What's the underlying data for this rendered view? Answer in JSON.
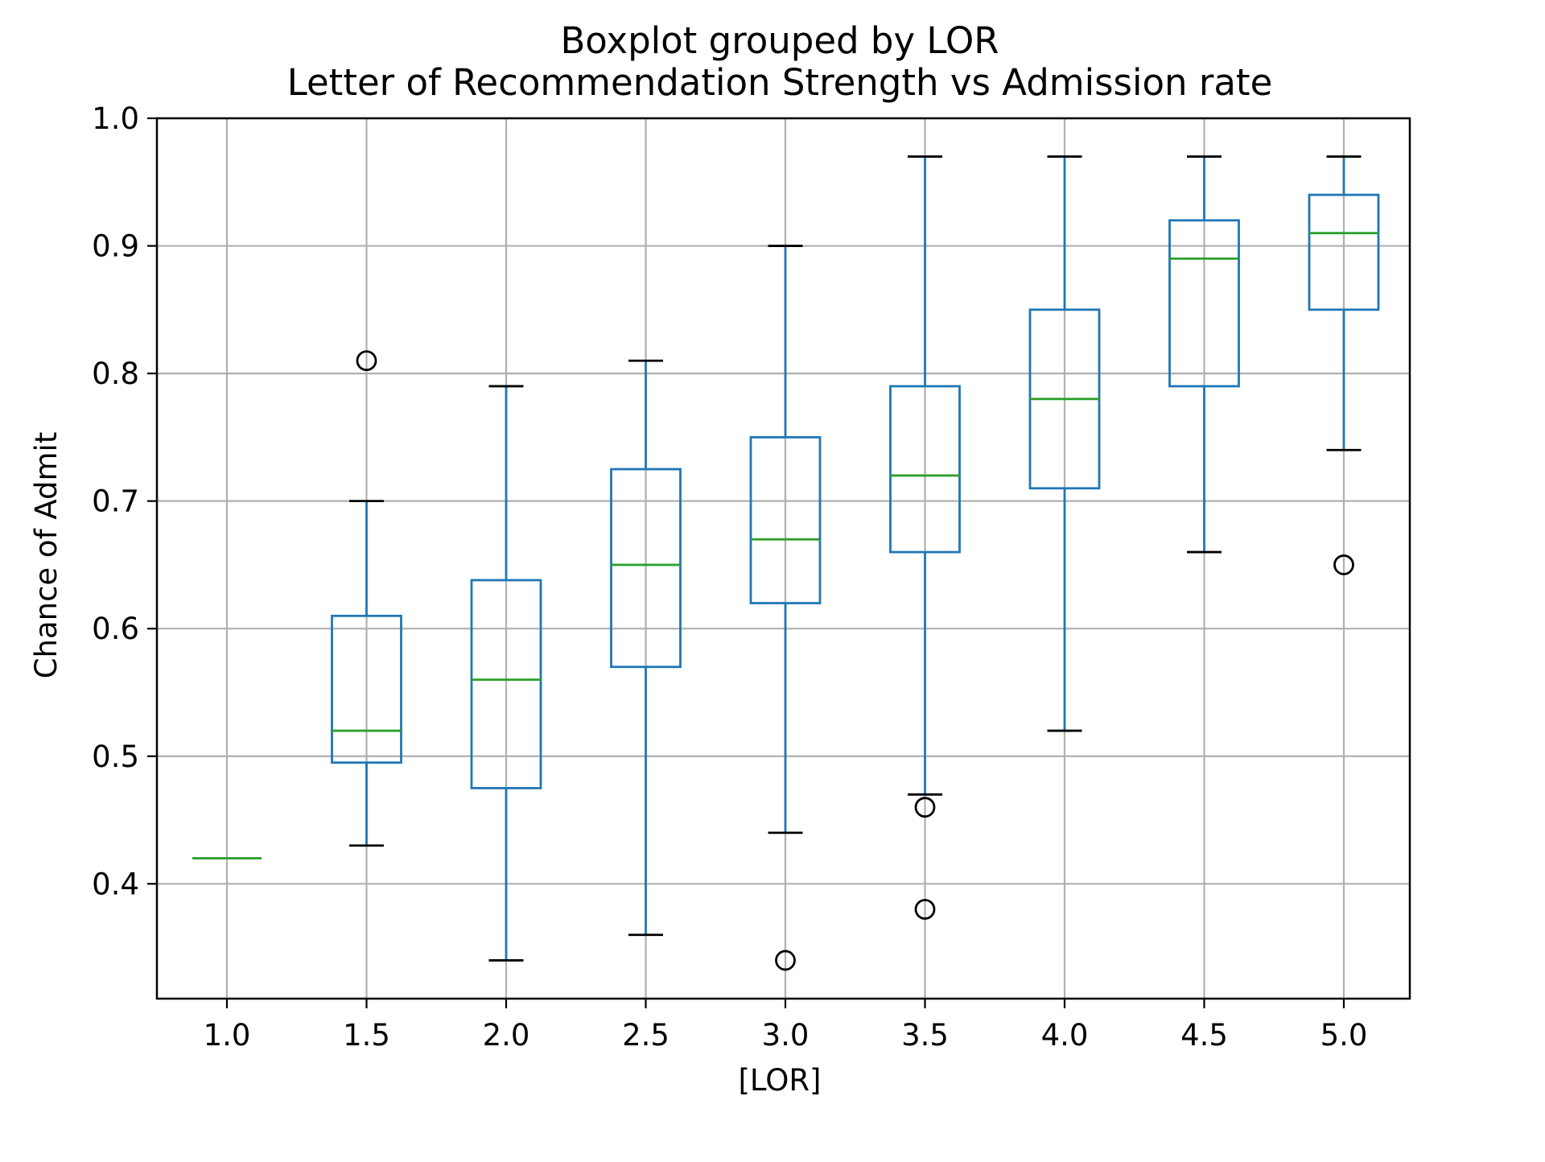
{
  "chart_data": {
    "type": "boxplot",
    "title": "Boxplot grouped by LOR",
    "subtitle": "Letter of Recommendation Strength vs Admission rate",
    "xlabel": "[LOR]",
    "ylabel": "Chance of Admit",
    "categories": [
      "1.0",
      "1.5",
      "2.0",
      "2.5",
      "3.0",
      "3.5",
      "4.0",
      "4.5",
      "5.0"
    ],
    "x_tick_labels": [
      "1.0",
      "1.5",
      "2.0",
      "2.5",
      "3.0",
      "3.5",
      "4.0",
      "4.5",
      "5.0"
    ],
    "y_tick_values": [
      0.4,
      0.5,
      0.6,
      0.7,
      0.8,
      0.9,
      1.0
    ],
    "y_tick_labels": [
      "0.4",
      "0.5",
      "0.6",
      "0.7",
      "0.8",
      "0.9",
      "1.0"
    ],
    "ylim": [
      0.31,
      1.0
    ],
    "grid": true,
    "colors": {
      "box": "#1f77b4",
      "median": "#2ca02c",
      "grid": "#b0b0b0",
      "axis": "#000000"
    },
    "boxes": [
      {
        "category": "1.0",
        "whisker_low": 0.42,
        "q1": 0.42,
        "median": 0.42,
        "q3": 0.42,
        "whisker_high": 0.42,
        "outliers": []
      },
      {
        "category": "1.5",
        "whisker_low": 0.43,
        "q1": 0.495,
        "median": 0.52,
        "q3": 0.61,
        "whisker_high": 0.7,
        "outliers": [
          0.81
        ]
      },
      {
        "category": "2.0",
        "whisker_low": 0.34,
        "q1": 0.475,
        "median": 0.56,
        "q3": 0.638,
        "whisker_high": 0.79,
        "outliers": []
      },
      {
        "category": "2.5",
        "whisker_low": 0.36,
        "q1": 0.57,
        "median": 0.65,
        "q3": 0.725,
        "whisker_high": 0.81,
        "outliers": []
      },
      {
        "category": "3.0",
        "whisker_low": 0.44,
        "q1": 0.62,
        "median": 0.67,
        "q3": 0.75,
        "whisker_high": 0.9,
        "outliers": [
          0.34
        ]
      },
      {
        "category": "3.5",
        "whisker_low": 0.47,
        "q1": 0.66,
        "median": 0.72,
        "q3": 0.79,
        "whisker_high": 0.97,
        "outliers": [
          0.46,
          0.38
        ]
      },
      {
        "category": "4.0",
        "whisker_low": 0.52,
        "q1": 0.71,
        "median": 0.78,
        "q3": 0.85,
        "whisker_high": 0.97,
        "outliers": []
      },
      {
        "category": "4.5",
        "whisker_low": 0.66,
        "q1": 0.79,
        "median": 0.89,
        "q3": 0.92,
        "whisker_high": 0.97,
        "outliers": []
      },
      {
        "category": "5.0",
        "whisker_low": 0.74,
        "q1": 0.85,
        "median": 0.91,
        "q3": 0.94,
        "whisker_high": 0.97,
        "outliers": [
          0.65
        ]
      }
    ]
  }
}
